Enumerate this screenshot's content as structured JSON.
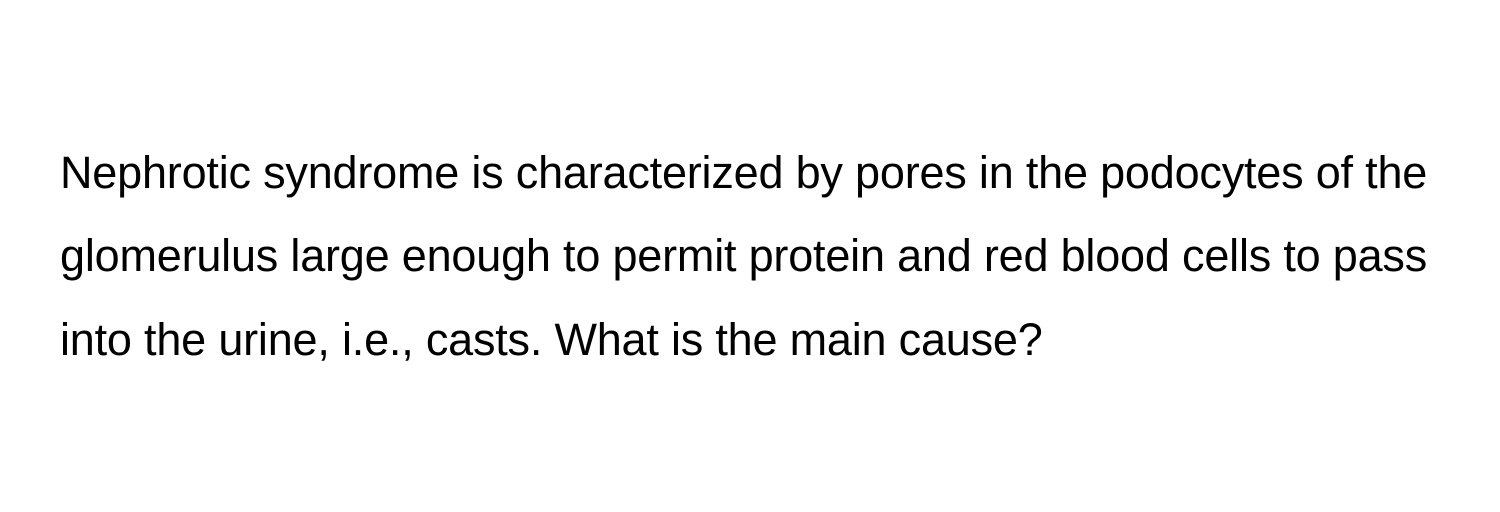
{
  "question": {
    "text": "Nephrotic syndrome is characterized by pores in the podocytes of the glomerulus large enough to permit protein and red blood cells to pass into the urine, i.e., casts. What is the main cause?",
    "font_size": 45,
    "line_height": 1.85,
    "text_color": "#000000",
    "background_color": "#ffffff",
    "font_weight": 400
  }
}
